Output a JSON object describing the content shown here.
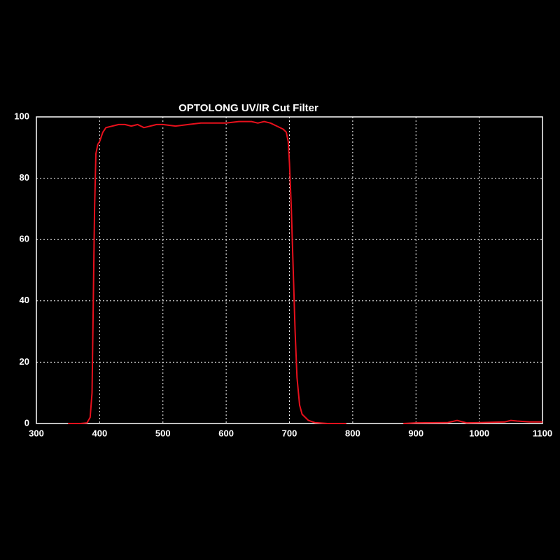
{
  "chart_data": {
    "type": "line",
    "title": "OPTOLONG UV/IR Cut Filter",
    "x": [
      350,
      370,
      380,
      385,
      388,
      390,
      392,
      394,
      397,
      400,
      405,
      410,
      420,
      430,
      440,
      450,
      460,
      470,
      480,
      490,
      500,
      520,
      540,
      560,
      580,
      600,
      620,
      640,
      650,
      660,
      670,
      680,
      690,
      695,
      698,
      700,
      703,
      706,
      709,
      712,
      716,
      720,
      730,
      740,
      760,
      790,
      840,
      880,
      900,
      950,
      965,
      980,
      1000,
      1040,
      1050,
      1060,
      1080,
      1100
    ],
    "values": [
      0,
      0,
      0.2,
      2,
      10,
      40,
      70,
      88,
      91,
      92,
      95,
      96.5,
      97,
      97.5,
      97.5,
      97,
      97.5,
      96.5,
      97,
      97.5,
      97.5,
      97,
      97.5,
      98,
      98,
      98,
      98.5,
      98.5,
      98,
      98.5,
      98,
      97,
      96,
      95,
      92,
      85,
      70,
      50,
      30,
      15,
      6,
      3,
      1,
      0.3,
      0,
      0,
      null,
      0,
      0.2,
      0.3,
      1,
      0.2,
      0.3,
      0.5,
      1,
      0.8,
      0.5,
      0.5
    ],
    "color": "#e8101c",
    "xlim": [
      300,
      1100
    ],
    "xticks": [
      300,
      400,
      500,
      600,
      700,
      800,
      900,
      1000,
      1100
    ],
    "ylim": [
      0,
      100
    ],
    "yticks": [
      0,
      20,
      40,
      60,
      80,
      100
    ],
    "grid": true
  }
}
